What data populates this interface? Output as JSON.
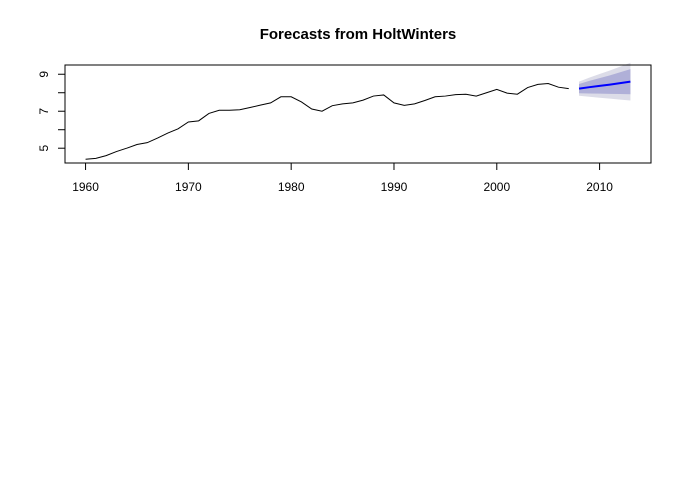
{
  "chart_data": {
    "type": "line",
    "title": "Forecasts from HoltWinters",
    "xlabel": "",
    "ylabel": "",
    "xlim": [
      1958,
      2015
    ],
    "ylim": [
      4.2,
      9.5
    ],
    "grid": false,
    "xticks": [
      1960,
      1970,
      1980,
      1990,
      2000,
      2010
    ],
    "xtick_labels": [
      "1960",
      "1970",
      "1980",
      "1990",
      "2000",
      "2010"
    ],
    "yticks": [
      5,
      6,
      7,
      8,
      9
    ],
    "ytick_labels": [
      "5",
      "",
      "7",
      "",
      "9"
    ],
    "colors": {
      "observed": "#000000",
      "forecast": "#0000ff",
      "band80": "#b0b0d8",
      "band95": "#dcdce8"
    },
    "observed": {
      "x": [
        1960,
        1961,
        1962,
        1963,
        1964,
        1965,
        1966,
        1967,
        1968,
        1969,
        1970,
        1971,
        1972,
        1973,
        1974,
        1975,
        1976,
        1977,
        1978,
        1979,
        1980,
        1981,
        1982,
        1983,
        1984,
        1985,
        1986,
        1987,
        1988,
        1989,
        1990,
        1991,
        1992,
        1993,
        1994,
        1995,
        1996,
        1997,
        1998,
        1999,
        2000,
        2001,
        2002,
        2003,
        2004,
        2005,
        2006,
        2007
      ],
      "y": [
        4.4,
        4.45,
        4.6,
        4.82,
        5.0,
        5.2,
        5.3,
        5.55,
        5.82,
        6.05,
        6.42,
        6.48,
        6.88,
        7.05,
        7.05,
        7.08,
        7.2,
        7.33,
        7.45,
        7.78,
        7.78,
        7.5,
        7.12,
        7.0,
        7.3,
        7.4,
        7.45,
        7.6,
        7.82,
        7.88,
        7.45,
        7.32,
        7.4,
        7.58,
        7.78,
        7.82,
        7.9,
        7.92,
        7.82,
        8.0,
        8.18,
        7.98,
        7.92,
        8.28,
        8.45,
        8.5,
        8.3,
        8.22
      ]
    },
    "forecast": {
      "x": [
        2008,
        2009,
        2010,
        2011,
        2012,
        2013
      ],
      "mean": [
        8.22,
        8.3,
        8.37,
        8.44,
        8.52,
        8.6
      ],
      "lo80": [
        7.97,
        7.96,
        7.95,
        7.94,
        7.93,
        7.92
      ],
      "hi80": [
        8.47,
        8.64,
        8.79,
        8.94,
        9.11,
        9.28
      ],
      "lo95": [
        7.84,
        7.78,
        7.73,
        7.68,
        7.63,
        7.58
      ],
      "hi95": [
        8.6,
        8.82,
        9.01,
        9.2,
        9.41,
        9.62
      ]
    }
  }
}
